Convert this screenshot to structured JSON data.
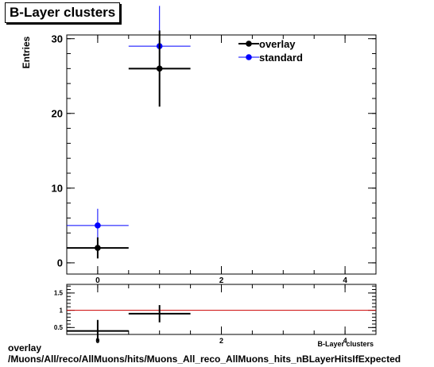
{
  "title": "B-Layer clusters",
  "footer": {
    "line1": "overlay",
    "line2": "/Muons/All/reco/AllMuons/hits/Muons_All_reco_AllMuons_hits_nBLayerHitsIfExpected"
  },
  "colors": {
    "overlay": "#000000",
    "standard": "#0000ff",
    "ratio_ref_line": "#cc0000"
  },
  "chart_data": [
    {
      "type": "scatter",
      "title": "B-Layer clusters",
      "xlabel": "B-Layer clusters",
      "ylabel": "Entries",
      "xlim": [
        -0.5,
        4.5
      ],
      "ylim": [
        -1.5,
        30.5
      ],
      "x_ticks": [
        0,
        2,
        4
      ],
      "y_ticks": [
        0,
        10,
        20,
        30
      ],
      "legend_position": "top-right",
      "series": [
        {
          "name": "overlay",
          "points": [
            {
              "x": 0,
              "y": 2,
              "xerr": 0.5,
              "yerr": 1.41
            },
            {
              "x": 1,
              "y": 26,
              "xerr": 0.5,
              "yerr": 5.1
            }
          ]
        },
        {
          "name": "standard",
          "points": [
            {
              "x": 0,
              "y": 5,
              "xerr": 0.5,
              "yerr": 2.24
            },
            {
              "x": 1,
              "y": 29,
              "xerr": 0.5,
              "yerr": 5.39
            }
          ]
        }
      ]
    },
    {
      "type": "scatter",
      "xlim": [
        -0.5,
        4.5
      ],
      "ylim": [
        0.3,
        1.75
      ],
      "x_ticks": [
        0,
        2,
        4
      ],
      "y_ticks": [
        0.5,
        1,
        1.5
      ],
      "reference_line": 1,
      "series": [
        {
          "points": [
            {
              "x": 0,
              "y": 0.4,
              "xerr": 0.5,
              "yerr": 0.32
            },
            {
              "x": 1,
              "y": 0.9,
              "xerr": 0.5,
              "yerr": 0.25
            }
          ]
        }
      ]
    }
  ]
}
